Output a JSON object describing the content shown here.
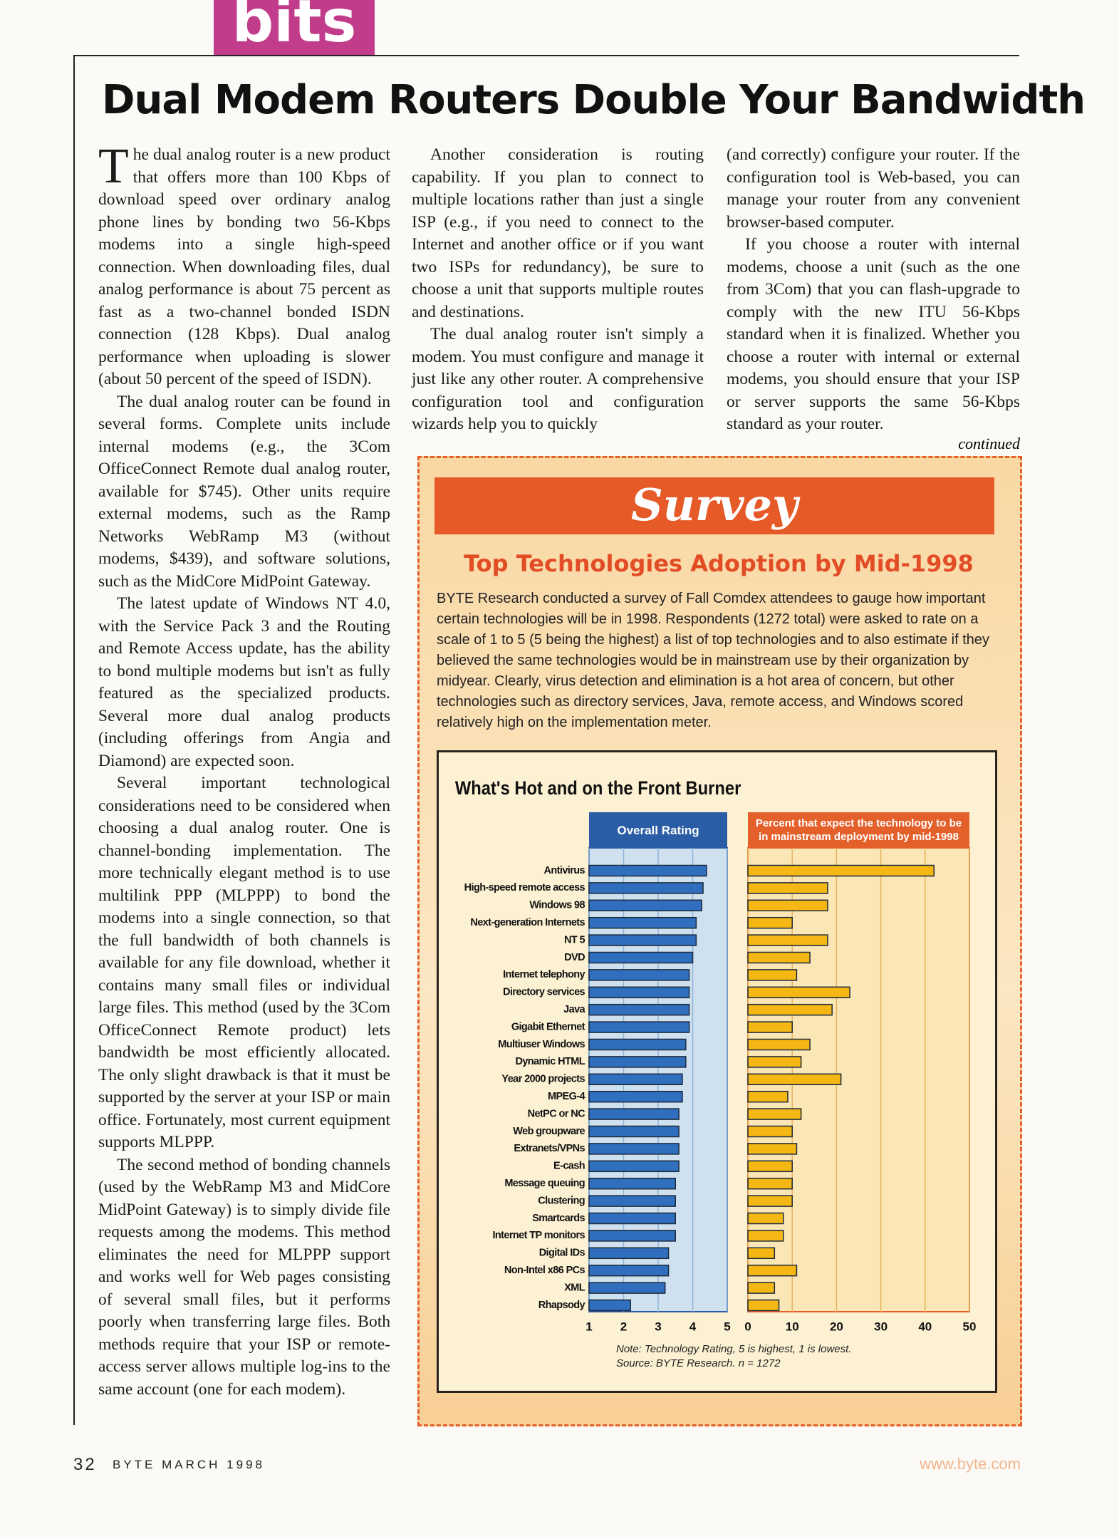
{
  "section": "bits",
  "title": "Dual Modem Routers Double Your Bandwidth",
  "columns": [
    [
      "The dual analog router is a new product that offers more than 100 Kbps of download speed over ordinary analog phone lines by bonding two 56-Kbps modems into a single high-speed connection. When downloading files, dual analog performance is about 75 percent as fast as a two-channel bonded ISDN connection (128 Kbps). Dual analog performance when uploading is slower (about 50 percent of the speed of ISDN).",
      "The dual analog router can be found in several forms. Complete units include internal modems (e.g., the 3Com OfficeConnect Remote dual analog router, available for $745). Other units require external modems, such as the Ramp Networks WebRamp M3 (without modems, $439), and software solutions, such as the MidCore MidPoint Gateway.",
      "The latest update of Windows NT 4.0, with the Service Pack 3 and the Routing and Remote Access update, has the ability to bond multiple modems but isn't as fully featured as the specialized products. Several more dual analog products (including offerings from Angia and Diamond) are expected soon.",
      "Several important technological considerations need to be considered when choosing a dual analog router. One is channel-bonding implementation. The more technically elegant method is to use multilink PPP (MLPPP) to bond the modems into a single connection, so that the full bandwidth of both channels is available for any file download, whether it contains many small files or individual large files. This method (used by the 3Com OfficeConnect Remote product) lets bandwidth be most efficiently allocated. The only slight drawback is that it must be supported by the server at your ISP or main office. Fortunately, most current equipment supports MLPPP.",
      "The second method of bonding channels (used by the WebRamp M3 and MidCore MidPoint Gateway) is to simply divide file requests among the modems. This method eliminates the need for MLPPP support and works well for Web pages consisting of several small files, but it performs poorly when transferring large files. Both methods require that your ISP or remote-access server allows multiple log-ins to the same account (one for each modem)."
    ],
    [
      "Another consideration is routing capability. If you plan to connect to multiple locations rather than just a single ISP (e.g., if you need to connect to the Internet and another office or if you want two ISPs for redundancy), be sure to choose a unit that supports multiple routes and destinations.",
      "The dual analog router isn't simply a modem. You must configure and manage it just like any other router. A comprehensive configuration tool and configuration wizards help you to quickly"
    ],
    [
      "(and correctly) configure your router. If the configuration tool is Web-based, you can manage your router from any convenient browser-based computer.",
      "If you choose a router with internal modems, choose a unit (such as the one from 3Com) that you can flash-upgrade to comply with the new ITU 56-Kbps standard when it is finalized. Whether you choose a router with internal or external modems, you should ensure that your ISP or server supports the same 56-Kbps standard as your router."
    ]
  ],
  "continued": "continued",
  "survey": {
    "label": "Survey",
    "title": "Top Technologies Adoption by Mid-1998",
    "body": "BYTE Research conducted a survey of Fall Comdex attendees to gauge how important certain technologies will be in 1998. Respondents (1272 total) were asked to rate on a scale of 1 to 5 (5 being the highest) a list of top technologies and to also estimate if they believed the same technologies would be in mainstream use by their organization by midyear. Clearly, virus detection and elimination is a hot area of concern, but other technologies such as directory services, Java, remote access, and Windows scored relatively high on the implementation meter."
  },
  "chart_data": {
    "type": "bar",
    "orientation": "horizontal",
    "title": "What's Hot and on the Front Burner",
    "categories": [
      "Antivirus",
      "High-speed remote access",
      "Windows 98",
      "Next-generation Internets",
      "NT 5",
      "DVD",
      "Internet telephony",
      "Directory services",
      "Java",
      "Gigabit Ethernet",
      "Multiuser Windows",
      "Dynamic HTML",
      "Year 2000 projects",
      "MPEG-4",
      "NetPC or NC",
      "Web groupware",
      "Extranets/VPNs",
      "E-cash",
      "Message queuing",
      "Clustering",
      "Smartcards",
      "Internet TP monitors",
      "Digital IDs",
      "Non-Intel x86 PCs",
      "XML",
      "Rhapsody"
    ],
    "panels": [
      {
        "name": "Overall Rating",
        "color": "#2f6fbd",
        "header_color": "#2b5ca6",
        "background": "#cfe1ef",
        "values": [
          4.4,
          4.3,
          4.26,
          4.1,
          4.1,
          4.0,
          3.9,
          3.9,
          3.9,
          3.9,
          3.8,
          3.8,
          3.7,
          3.7,
          3.6,
          3.6,
          3.6,
          3.6,
          3.5,
          3.5,
          3.5,
          3.5,
          3.3,
          3.3,
          3.2,
          2.2
        ],
        "xlim": [
          1,
          5
        ],
        "xticks": [
          1,
          2,
          3,
          4,
          5
        ]
      },
      {
        "name": "Percent that expect the technology to be in mainstream deployment by mid-1998",
        "color": "#f4b714",
        "header_color": "#e4602b",
        "background": "#fbe7b6",
        "values": [
          42,
          18,
          18,
          10,
          18,
          14,
          11,
          23,
          19,
          10,
          14,
          12,
          21,
          9,
          12,
          10,
          11,
          10,
          10,
          10,
          8,
          8,
          6,
          11,
          6,
          7
        ],
        "xlim": [
          0,
          50
        ],
        "xticks": [
          0,
          10,
          20,
          30,
          40,
          50
        ]
      }
    ],
    "grid": true,
    "notes": [
      "Note: Technology Rating, 5 is highest, 1 is lowest.",
      "Source: BYTE Research. n = 1272"
    ]
  },
  "footer": {
    "page": "32",
    "magazine": "BYTE MARCH 1998",
    "url": "www.byte.com"
  }
}
